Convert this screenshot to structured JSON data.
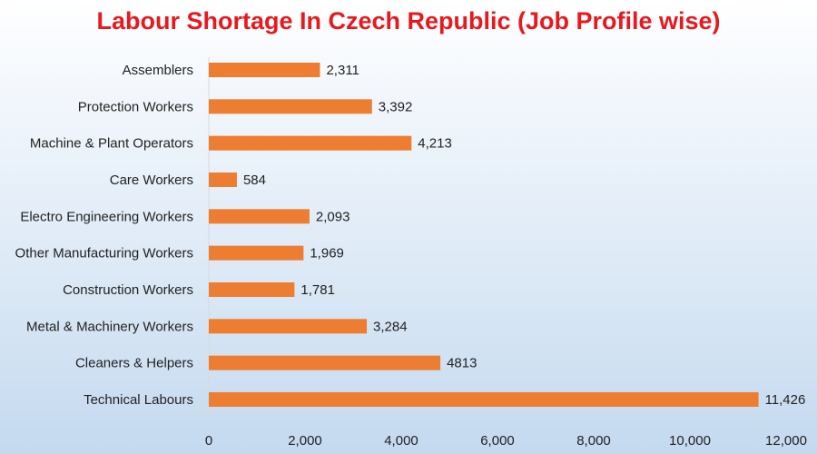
{
  "chart_data": {
    "type": "bar",
    "orientation": "horizontal",
    "title": "Labour Shortage In Czech Republic (Job Profile wise)",
    "xlabel": "",
    "ylabel": "",
    "categories": [
      "Assemblers",
      "Protection Workers",
      "Machine & Plant Operators",
      "Care Workers",
      "Electro Engineering Workers",
      "Other Manufacturing Workers",
      "Construction Workers",
      "Metal & Machinery Workers",
      "Cleaners & Helpers",
      "Technical Labours"
    ],
    "values": [
      2311,
      3392,
      4213,
      584,
      2093,
      1969,
      1781,
      3284,
      4813,
      11426
    ],
    "data_labels": [
      "2,311",
      "3,392",
      "4,213",
      "584",
      "2,093",
      "1,969",
      "1,781",
      "3,284",
      "4813",
      "11,426"
    ],
    "xlim": [
      0,
      12000
    ],
    "xticks": [
      0,
      2000,
      4000,
      6000,
      8000,
      10000,
      12000
    ],
    "xtick_labels": [
      "0",
      "2,000",
      "4,000",
      "6,000",
      "8,000",
      "10,000",
      "12,000"
    ],
    "grid": false,
    "legend": "none",
    "bar_color": "#ED7D31",
    "title_color": "#E8191E"
  }
}
